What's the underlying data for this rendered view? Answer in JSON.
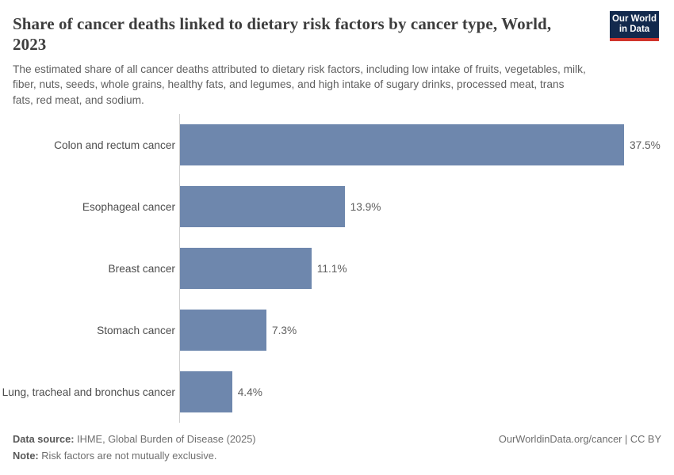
{
  "header": {
    "title": "Share of cancer deaths linked to dietary risk factors by cancer type, World, 2023",
    "subtitle": "The estimated share of all cancer deaths attributed to dietary risk factors, including low intake of fruits, vegetables, milk, fiber, nuts, seeds, whole grains, healthy fats, and legumes, and high intake of sugary drinks, processed meat, trans fats, red meat, and sodium.",
    "logo": {
      "line1": "Our World",
      "line2": "in Data"
    }
  },
  "chart_data": {
    "type": "bar",
    "orientation": "horizontal",
    "title": "Share of cancer deaths linked to dietary risk factors by cancer type, World, 2023",
    "categories": [
      "Colon and rectum cancer",
      "Esophageal cancer",
      "Breast cancer",
      "Stomach cancer",
      "Lung, tracheal and bronchus cancer"
    ],
    "values": [
      37.5,
      13.9,
      11.1,
      7.3,
      4.4
    ],
    "value_labels": [
      "37.5%",
      "13.9%",
      "11.1%",
      "7.3%",
      "4.4%"
    ],
    "unit": "%",
    "xlim": [
      0,
      37.5
    ],
    "grid": false,
    "legend": "none",
    "bar_color": "#6e87ad",
    "axis_line_color": "#cfcfcf"
  },
  "footer": {
    "data_source_label": "Data source:",
    "data_source": "IHME, Global Burden of Disease (2025)",
    "note_label": "Note:",
    "note": "Risk factors are not mutually exclusive.",
    "credit": "OurWorldinData.org/cancer | CC BY"
  }
}
